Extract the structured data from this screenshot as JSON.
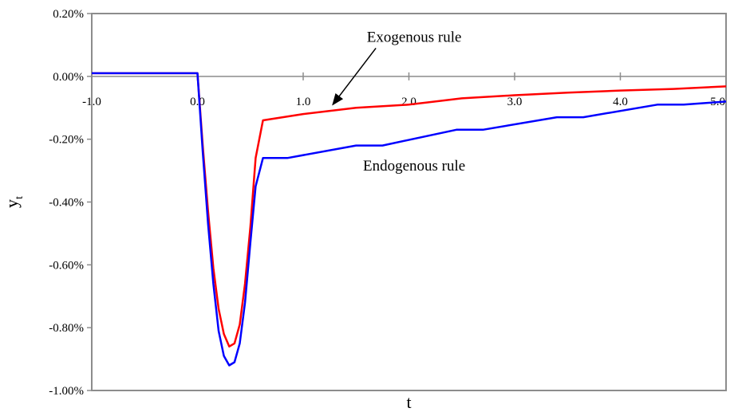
{
  "chart_data": {
    "type": "line",
    "xlabel": "t",
    "ylabel": "y",
    "ylabel_subscript": "t",
    "xlim": [
      -1.0,
      5.0
    ],
    "ylim": [
      -0.01,
      0.002
    ],
    "x_ticks": [
      -1.0,
      0.0,
      1.0,
      2.0,
      3.0,
      4.0,
      5.0
    ],
    "x_tick_labels": [
      "-1.0",
      "0.0",
      "1.0",
      "2.0",
      "3.0",
      "4.0",
      "5.0"
    ],
    "y_ticks": [
      0.002,
      0.0,
      -0.002,
      -0.004,
      -0.006,
      -0.008,
      -0.01
    ],
    "y_tick_labels": [
      "0.20%",
      "0.00%",
      "-0.20%",
      "-0.40%",
      "-0.60%",
      "-0.80%",
      "-1.00%"
    ],
    "grid": false,
    "series": [
      {
        "name": "Exogenous rule",
        "color": "#ff0000",
        "points": [
          [
            -1.0,
            0.0001
          ],
          [
            0.0,
            0.0001
          ],
          [
            0.05,
            -0.0022
          ],
          [
            0.1,
            -0.0043
          ],
          [
            0.15,
            -0.0061
          ],
          [
            0.2,
            -0.0074
          ],
          [
            0.25,
            -0.0082
          ],
          [
            0.3,
            -0.0086
          ],
          [
            0.35,
            -0.0085
          ],
          [
            0.4,
            -0.0079
          ],
          [
            0.45,
            -0.0066
          ],
          [
            0.5,
            -0.0048
          ],
          [
            0.55,
            -0.0026
          ],
          [
            0.62,
            -0.0014
          ],
          [
            1.0,
            -0.0012
          ],
          [
            1.5,
            -0.001
          ],
          [
            2.0,
            -0.0009
          ],
          [
            2.5,
            -0.0007
          ],
          [
            3.0,
            -0.0006
          ],
          [
            3.5,
            -0.00052
          ],
          [
            4.0,
            -0.00045
          ],
          [
            4.5,
            -0.0004
          ],
          [
            5.0,
            -0.00032
          ]
        ]
      },
      {
        "name": "Endogenous rule",
        "color": "#0000ff",
        "points": [
          [
            -1.0,
            0.0001
          ],
          [
            0.0,
            0.0001
          ],
          [
            0.05,
            -0.0024
          ],
          [
            0.1,
            -0.0047
          ],
          [
            0.15,
            -0.0066
          ],
          [
            0.2,
            -0.0081
          ],
          [
            0.25,
            -0.0089
          ],
          [
            0.3,
            -0.0092
          ],
          [
            0.35,
            -0.0091
          ],
          [
            0.4,
            -0.0085
          ],
          [
            0.45,
            -0.0072
          ],
          [
            0.5,
            -0.0053
          ],
          [
            0.55,
            -0.0035
          ],
          [
            0.62,
            -0.0026
          ],
          [
            0.85,
            -0.0026
          ],
          [
            1.5,
            -0.0022
          ],
          [
            1.75,
            -0.0022
          ],
          [
            2.45,
            -0.0017
          ],
          [
            2.7,
            -0.0017
          ],
          [
            3.4,
            -0.0013
          ],
          [
            3.65,
            -0.0013
          ],
          [
            4.35,
            -0.0009
          ],
          [
            4.6,
            -0.0009
          ],
          [
            5.0,
            -0.0008
          ]
        ]
      }
    ],
    "annotations": [
      {
        "text": "Exogenous rule",
        "x": 2.05,
        "y": 0.0011,
        "arrow_to": [
          1.28,
          -0.0009
        ]
      },
      {
        "text": "Endogenous rule",
        "x": 2.05,
        "y": -0.003
      }
    ]
  }
}
